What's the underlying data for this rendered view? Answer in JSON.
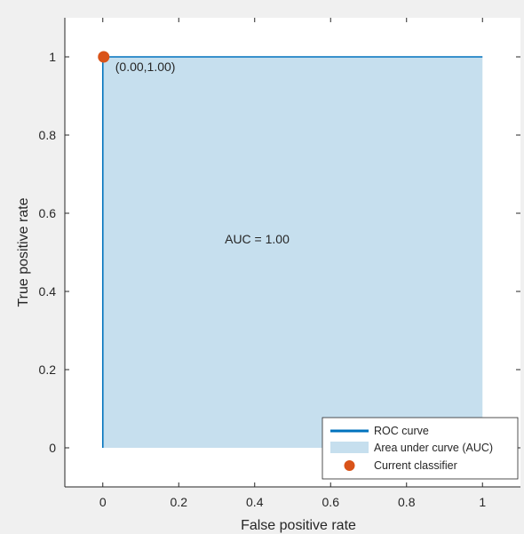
{
  "chart_data": {
    "type": "area",
    "title": "",
    "xlabel": "False positive rate",
    "ylabel": "True positive rate",
    "xlim": [
      -0.1,
      1.1
    ],
    "ylim": [
      -0.1,
      1.1
    ],
    "xticks": [
      0,
      0.2,
      0.4,
      0.6,
      0.8,
      1
    ],
    "xtick_labels": [
      "0",
      "0.2",
      "0.4",
      "0.6",
      "0.8",
      "1"
    ],
    "yticks": [
      0,
      0.2,
      0.4,
      0.6,
      0.8,
      1
    ],
    "ytick_labels": [
      "0",
      "0.2",
      "0.4",
      "0.6",
      "0.8",
      "1"
    ],
    "grid": false,
    "legend_position": "bottom-right",
    "series": [
      {
        "name": "ROC curve",
        "kind": "line",
        "color": "#0072BD",
        "x": [
          0,
          0,
          0,
          0,
          1
        ],
        "y": [
          0,
          0.21,
          0.25,
          1,
          1
        ]
      },
      {
        "name": "Area under curve (AUC)",
        "kind": "area",
        "color": "#c6dfee",
        "x": [
          0,
          0,
          1,
          1
        ],
        "y": [
          0,
          1,
          1,
          0
        ]
      },
      {
        "name": "Current classifier",
        "kind": "point",
        "color": "#D95319",
        "x": [
          0
        ],
        "y": [
          1
        ]
      }
    ],
    "annotations": [
      {
        "text": "(0.00,1.00)",
        "x": 0,
        "y": 1
      },
      {
        "text": "AUC = 1.00",
        "x": 0.5,
        "y": 0.5
      }
    ]
  }
}
